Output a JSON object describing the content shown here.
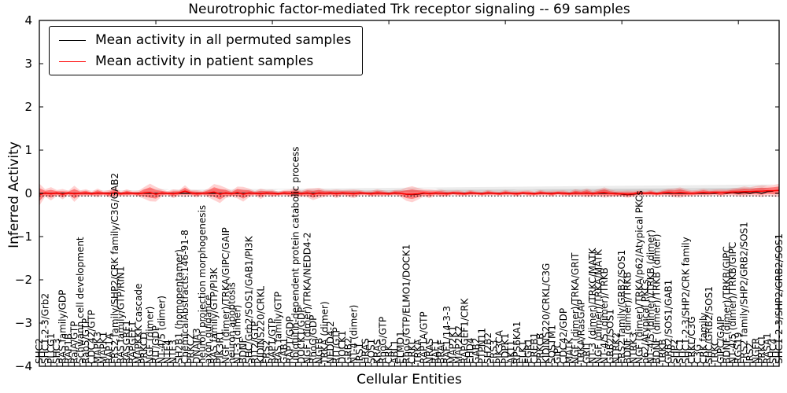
{
  "chart_data": {
    "type": "line",
    "title": "Neurotrophic factor-mediated Trk receptor signaling -- 69 samples",
    "xlabel": "Cellular Entities",
    "ylabel": "Inferred Activity",
    "ylim": [
      -4,
      4
    ],
    "yticks": [
      4,
      3,
      2,
      1,
      0,
      -1,
      -2,
      -3,
      -4
    ],
    "grid": false,
    "legend_position": "upper left",
    "reference_dotted_line_y": -0.06,
    "categories": [
      "SHC2",
      "SHC1-2-3/Grb2",
      "PLCG1",
      "SHC3",
      "RAS family/GDP",
      "RAP1B",
      "RalA/GTP",
      "Schwann cell development",
      "Rab5/GTP",
      "CDC42/GTP",
      "MAPK3",
      "MAPK1",
      "RAP1A",
      "FRS2 family/SHP2/CRK family/C3G/GAB2",
      "RAS family/GTP/RIN1",
      "RASGRF1",
      "RAPGEF1",
      "MAPKKK cascade",
      "PRKCD",
      "NGF (dimer)",
      "RIT/GDP",
      "NT-4/5 (dimer)",
      "NTF4",
      "NTF3",
      "SH2B1 (homopentamer)",
      "ChemicalAbstracts:146-91-8",
      "PRKCZ",
      "DNAJA3",
      "neuron projection morphogenesis",
      "axon guidance",
      "RAS family/GTP/PI3K",
      "PIK3R1",
      "NGF (dimer)/TRKA/GIPC/GAIP",
      "neuron apoptosis",
      "NT-3 (dimer)",
      "BDNF",
      "SHC/Grb2/SOS1/GAB1/PI3K",
      "RIT2/GTP",
      "KIDINS220/CRKL",
      "FRS2",
      "RAP1/GTP",
      "RAS family/GTP",
      "GAB1",
      "RAP1/GDP",
      "ubiquitin-dependent protein catabolic process",
      "DOCK1/GDP",
      "NGF (dimer)/TRKA/NEDD4-2",
      "RhoG/GDP",
      "NGFB",
      "TRKA (dimer)",
      "NEDD4-2",
      "RIT/GTP",
      "DOCK1",
      "GRB2",
      "NT-4 (dimer)",
      "IRS1",
      "HRAS",
      "SOS1",
      "KRAS",
      "RhoG/GTP",
      "CRK",
      "ABL1",
      "ELMO1",
      "RhoG/GTP/ELMO1/DOCK1",
      "CRKL",
      "TRKA",
      "RAP1A/GTP",
      "NRAS",
      "RAF1",
      "BRAF",
      "RAF1/14-3-3",
      "MAP2K1",
      "MAP2K2",
      "RAPGEF1/CRK",
      "EHD4",
      "GAB2",
      "PTPN11",
      "SH2B2",
      "FRS3",
      "PIK3CA",
      "PDPK1",
      "AKT1",
      "RPS6KA1",
      "ELK1",
      "EGR1",
      "CREB1",
      "PRKCB",
      "KIDINS220/CRKL/C3G",
      "SQSTM1",
      "GIPC",
      "CDC42/GDP",
      "MATK",
      "NGF (dimer)/TRKA/GRIT",
      "TRKA/RasGAP",
      "GRIT",
      "NT-3 (dimer)/TRKC/MATK",
      "NGF (dimer)/TRKA/MATK",
      "NT-4/5 (dimer)/TRKB",
      "GRB2/SOS1",
      "NTRK2",
      "FRS2 family/GRB2/SOS1",
      "BDNF (dimer)/TRKB",
      "NTRK3",
      "NGF (dimer)/TRKA/p62/Atypical PKCs",
      "p62/Atypical PKCs",
      "NT-4/5 (dimer)/TRKB (dimer)",
      "BDNF (dimer)/TRKB (dimer)",
      "TRKB",
      "GRB2/SOS1/GAB1",
      "SHP2",
      "SHC1",
      "SHC1-2-3/SHP2/CRK family",
      "CRKL/C3G",
      "C3G",
      "CRK family",
      "SHC/GRB2/SOS1",
      "TRKC",
      "GIPC/GAIP",
      "BDNF (dimer)/TRKB/GIPC",
      "NT-4/5 (dimer)/TRKB/GIPC",
      "RGS19",
      "FRS2 family/SHP2/GRB2/SOS1",
      "IRS2",
      "NGFR",
      "PRKCI",
      "RASA1",
      "SHC4",
      "SHC1-2-3/SHP2/GRB2/SOS1"
    ],
    "series": [
      {
        "name": "Mean activity in all permuted samples",
        "color": "#000000",
        "values": [
          0,
          0,
          0,
          0,
          0,
          0,
          0,
          0,
          0,
          0,
          0,
          0,
          0,
          0,
          0,
          0,
          0,
          0,
          0,
          0,
          0,
          0,
          0,
          0,
          0,
          0,
          0,
          0,
          0,
          0,
          0,
          0,
          0,
          0,
          0,
          0,
          0,
          0,
          0,
          0,
          0,
          0,
          0,
          0,
          0,
          0,
          0,
          0,
          0,
          0,
          0,
          0,
          0,
          0,
          0,
          0,
          0,
          0,
          0,
          0,
          0,
          0,
          0,
          -0.02,
          -0.03,
          -0.02,
          0,
          0,
          0,
          0,
          0,
          0,
          0,
          0,
          0,
          0,
          0,
          0,
          0,
          0,
          0,
          0,
          0,
          0,
          0,
          0,
          0,
          0,
          0,
          0,
          0,
          0,
          0,
          0,
          0,
          0,
          0,
          0,
          0,
          0,
          -0.02,
          -0.03,
          -0.02,
          0,
          0,
          0,
          0,
          0,
          0,
          0,
          0,
          0,
          0,
          0,
          0,
          0,
          0,
          0.01,
          0,
          0.02,
          0,
          0.02,
          0,
          0.03,
          0,
          0.04,
          0.05
        ]
      },
      {
        "name": "Mean activity in patient samples",
        "color": "#ff0000",
        "values": [
          -0.03,
          0.01,
          -0.01,
          0.01,
          -0.02,
          0.01,
          -0.01,
          0,
          0.01,
          -0.01,
          0.01,
          0,
          -0.01,
          0.02,
          -0.01,
          0.01,
          0,
          -0.01,
          0.01,
          0.02,
          -0.02,
          0.01,
          0,
          -0.01,
          0.01,
          0.05,
          0.01,
          -0.01,
          0,
          0.01,
          0.03,
          -0.02,
          0.01,
          -0.01,
          0.02,
          -0.02,
          0.01,
          0,
          -0.01,
          0.01,
          0,
          -0.01,
          0.01,
          0,
          0.01,
          -0.01,
          0.01,
          -0.02,
          0.01,
          0,
          0.01,
          -0.01,
          0.01,
          0,
          -0.01,
          0.01,
          0,
          -0.01,
          0.01,
          0,
          -0.01,
          0.01,
          0,
          -0.02,
          -0.02,
          -0.01,
          0.01,
          -0.01,
          0.01,
          0,
          -0.01,
          0.01,
          0,
          -0.01,
          0.01,
          0,
          -0.01,
          0.01,
          0,
          -0.01,
          0.01,
          0,
          -0.01,
          0.01,
          0,
          -0.01,
          0.01,
          0,
          -0.01,
          0.01,
          0,
          -0.01,
          0.01,
          0,
          0.01,
          -0.01,
          0.01,
          0.02,
          0,
          -0.01,
          -0.01,
          -0.02,
          -0.01,
          0.01,
          0,
          0.01,
          -0.01,
          0.01,
          0.02,
          0.01,
          0.02,
          0.01,
          0,
          0.01,
          0.02,
          0.01,
          0.02,
          0.01,
          0.02,
          0.03,
          0.03,
          0.04,
          0.04,
          0.05,
          0.05,
          0.06,
          0.06,
          0.07
        ]
      }
    ],
    "bands": [
      {
        "name": "permuted std band",
        "color": "#aaaaaa",
        "center_series": 0,
        "center_offset": -0.03,
        "widths": [
          0.05,
          0.05,
          0.05,
          0.05,
          0.05,
          0.05,
          0.05,
          0.05,
          0.05,
          0.05,
          0.05,
          0.05,
          0.05,
          0.05,
          0.05,
          0.05,
          0.05,
          0.05,
          0.075,
          0.075,
          0.075,
          0.075,
          0.075,
          0.05,
          0.05,
          0.05,
          0.05,
          0.05,
          0.05,
          0.05,
          0.05,
          0.05,
          0.05,
          0.05,
          0.05,
          0.05,
          0.05,
          0.05,
          0.05,
          0.05,
          0.05,
          0.07,
          0.07,
          0.07,
          0.05,
          0.05,
          0.05,
          0.05,
          0.05,
          0.05,
          0.05,
          0.05,
          0.05,
          0.05,
          0.05,
          0.05,
          0.05,
          0.05,
          0.05,
          0.05,
          0.05,
          0.05,
          0.05,
          0.085,
          0.085,
          0.085,
          0.085,
          0.085,
          0.085,
          0.05,
          0.05,
          0.05,
          0.05,
          0.05,
          0.05,
          0.05,
          0.05,
          0.05,
          0.05,
          0.05,
          0.05,
          0.05,
          0.07,
          0.07,
          0.07,
          0.07,
          0.05,
          0.05,
          0.05,
          0.05,
          0.05,
          0.05,
          0.05,
          0.05,
          0.05,
          0.05,
          0.05,
          0.05,
          0.05,
          0.05,
          0.06,
          0.06,
          0.06,
          0.06,
          0.05,
          0.05,
          0.05,
          0.05,
          0.05,
          0.075,
          0.075,
          0.075,
          0.075,
          0.075,
          0.075,
          0.06,
          0.06,
          0.06,
          0.06,
          0.06,
          0.07,
          0.075,
          0.08,
          0.085,
          0.09,
          0.1,
          0.11,
          0.12
        ]
      },
      {
        "name": "patient std band",
        "color": "#ff0000",
        "center_series": 1,
        "center_offset": 0,
        "widths": [
          0.15,
          0.05,
          0.09,
          0.04,
          0.07,
          0.03,
          0.11,
          0.04,
          0.05,
          0.03,
          0.06,
          0.03,
          0.05,
          0.07,
          0.03,
          0.05,
          0.03,
          0.04,
          0.08,
          0.12,
          0.1,
          0.05,
          0.03,
          0.06,
          0.04,
          0.08,
          0.04,
          0.05,
          0.03,
          0.06,
          0.11,
          0.12,
          0.07,
          0.04,
          0.08,
          0.1,
          0.06,
          0.03,
          0.07,
          0.04,
          0.05,
          0.03,
          0.04,
          0.05,
          0.07,
          0.04,
          0.06,
          0.08,
          0.07,
          0.05,
          0.04,
          0.06,
          0.04,
          0.05,
          0.06,
          0.04,
          0.03,
          0.04,
          0.05,
          0.04,
          0.03,
          0.04,
          0.05,
          0.09,
          0.11,
          0.08,
          0.05,
          0.06,
          0.04,
          0.05,
          0.04,
          0.03,
          0.04,
          0.03,
          0.04,
          0.03,
          0.03,
          0.04,
          0.03,
          0.03,
          0.04,
          0.03,
          0.04,
          0.03,
          0.04,
          0.03,
          0.04,
          0.03,
          0.04,
          0.03,
          0.04,
          0.03,
          0.05,
          0.04,
          0.06,
          0.04,
          0.05,
          0.07,
          0.05,
          0.04,
          0.04,
          0.05,
          0.04,
          0.04,
          0.03,
          0.04,
          0.03,
          0.04,
          0.05,
          0.06,
          0.07,
          0.05,
          0.04,
          0.04,
          0.05,
          0.04,
          0.04,
          0.05,
          0.04,
          0.05,
          0.06,
          0.07,
          0.06,
          0.07,
          0.08,
          0.07,
          0.08,
          0.09
        ]
      }
    ]
  }
}
